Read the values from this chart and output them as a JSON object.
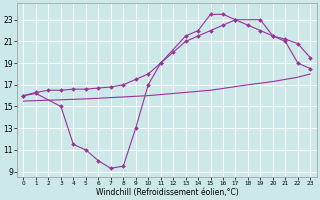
{
  "xlabel": "Windchill (Refroidissement éolien,°C)",
  "bg_color": "#cce8e8",
  "line_color": "#993399",
  "ylim": [
    8.5,
    24.5
  ],
  "xlim": [
    -0.5,
    23.5
  ],
  "yticks": [
    9,
    11,
    13,
    15,
    17,
    19,
    21,
    23
  ],
  "xticks": [
    0,
    1,
    2,
    3,
    4,
    5,
    6,
    7,
    8,
    9,
    10,
    11,
    12,
    13,
    14,
    15,
    16,
    17,
    18,
    19,
    20,
    21,
    22,
    23
  ],
  "line1_x": [
    0,
    1,
    3,
    4,
    5,
    6,
    7,
    8,
    9,
    10,
    11,
    13,
    14,
    15,
    16,
    17,
    19,
    20,
    21,
    22,
    23
  ],
  "line1_y": [
    16,
    16.2,
    15,
    11.5,
    11,
    10,
    9.3,
    9.5,
    13,
    17,
    19,
    21.5,
    22.0,
    23.5,
    23.5,
    23.0,
    23.0,
    21.5,
    21.0,
    19.0,
    18.5
  ],
  "line2_x": [
    0,
    1,
    2,
    3,
    4,
    5,
    6,
    7,
    8,
    9,
    10,
    11,
    12,
    13,
    14,
    15,
    16,
    17,
    18,
    19,
    20,
    21,
    22,
    23
  ],
  "line2_y": [
    16.0,
    16.3,
    16.5,
    16.5,
    16.6,
    16.6,
    16.7,
    16.8,
    17.0,
    17.5,
    18.0,
    19.0,
    20.0,
    21.0,
    21.5,
    22.0,
    22.5,
    23.0,
    22.5,
    22.0,
    21.5,
    21.2,
    20.8,
    19.5
  ],
  "line3_x": [
    0,
    5,
    10,
    15,
    18,
    20,
    21,
    22,
    23
  ],
  "line3_y": [
    15.5,
    15.7,
    16.0,
    16.5,
    17.0,
    17.3,
    17.5,
    17.7,
    18.0
  ]
}
